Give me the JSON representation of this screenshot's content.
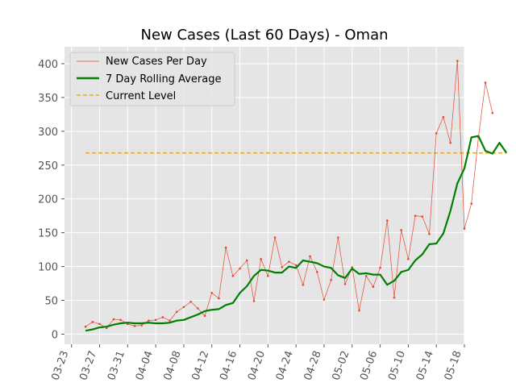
{
  "chart_data": {
    "type": "line",
    "title": "New Cases (Last 60 Days) - Oman",
    "xlabel": "",
    "ylabel": "",
    "x_start": "2020-03-25",
    "x_ticks": [
      "03-23",
      "03-27",
      "03-31",
      "04-04",
      "04-08",
      "04-12",
      "04-16",
      "04-20",
      "04-24",
      "04-28",
      "05-02",
      "05-06",
      "05-10",
      "05-14",
      "05-18"
    ],
    "xlim": [
      "2020-03-22",
      "2020-05-18"
    ],
    "y_ticks": [
      0,
      50,
      100,
      150,
      200,
      250,
      300,
      350,
      400
    ],
    "ylim": [
      -15,
      425
    ],
    "grid": true,
    "legend_position": "top-left",
    "series": [
      {
        "name": "New Cases Per Day",
        "style": "thin line with point markers",
        "color": "#e24a33",
        "values": [
          11,
          18,
          15,
          9,
          22,
          21,
          15,
          12,
          13,
          20,
          21,
          25,
          20,
          33,
          40,
          48,
          38,
          27,
          61,
          53,
          128,
          86,
          97,
          109,
          49,
          111,
          86,
          143,
          99,
          107,
          102,
          73,
          115,
          92,
          51,
          80,
          143,
          74,
          99,
          35,
          86,
          70,
          98,
          168,
          54,
          154,
          111,
          175,
          174,
          148,
          297,
          321,
          283,
          404,
          156,
          193,
          291,
          372,
          327
        ]
      },
      {
        "name": "7 Day Rolling Average",
        "style": "thick line",
        "color": "#008000",
        "values": [
          5,
          7,
          10,
          11,
          14,
          16,
          17,
          16,
          16,
          17,
          16,
          16,
          17,
          20,
          21,
          25,
          29,
          34,
          36,
          37,
          43,
          46,
          61,
          71,
          86,
          95,
          94,
          91,
          91,
          100,
          98,
          109,
          107,
          105,
          100,
          98,
          87,
          83,
          97,
          89,
          90,
          88,
          88,
          73,
          79,
          92,
          95,
          109,
          118,
          133,
          134,
          149,
          182,
          223,
          245,
          291,
          293,
          271,
          267,
          283,
          268
        ]
      },
      {
        "name": "Current Level",
        "style": "dashed horizontal line",
        "color": "#ffa500",
        "value": 268
      }
    ]
  }
}
